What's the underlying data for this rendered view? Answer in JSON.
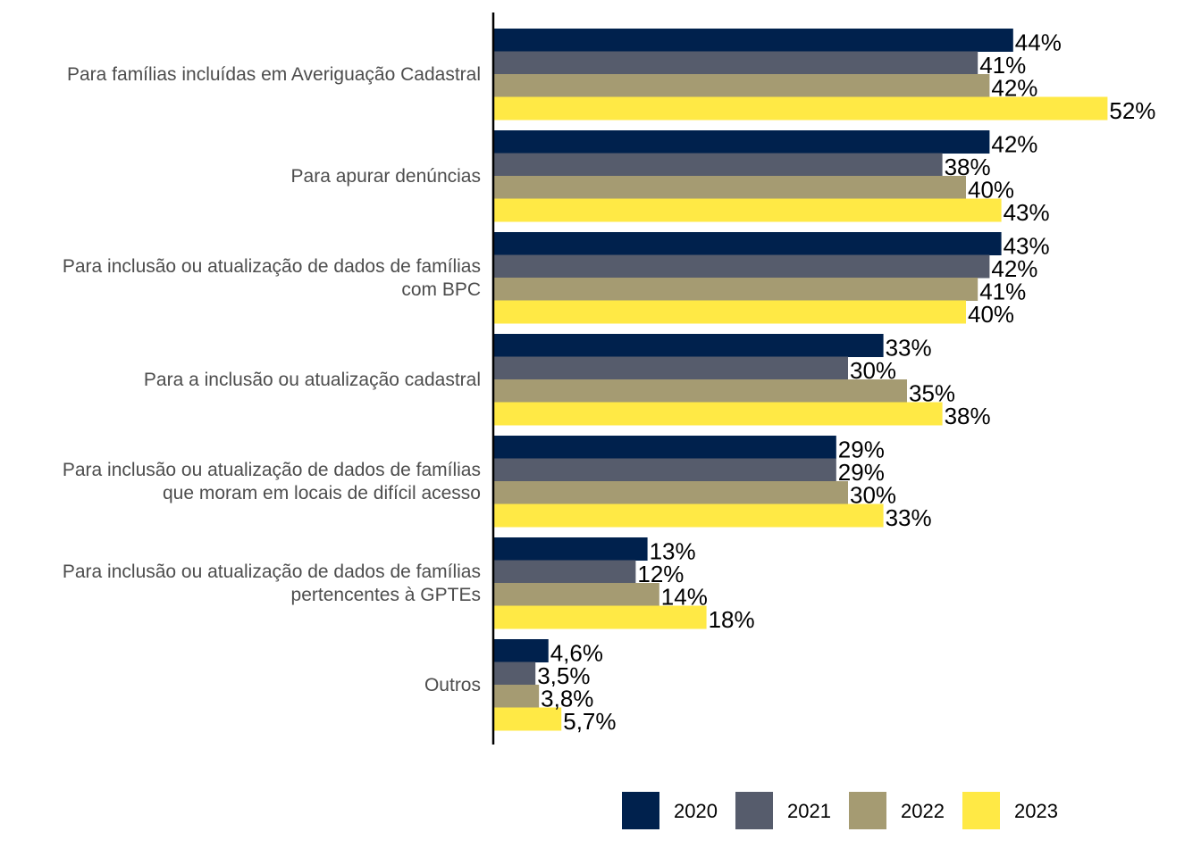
{
  "chart_data": {
    "type": "bar",
    "orientation": "horizontal",
    "title": "",
    "xlabel": "",
    "ylabel": "",
    "xlim": [
      0,
      55
    ],
    "grid": false,
    "legend_position": "bottom",
    "categories": [
      [
        "Para famílias incluídas em Averiguação Cadastral"
      ],
      [
        "Para apurar denúncias"
      ],
      [
        "Para inclusão ou atualização de dados de famílias",
        "com BPC"
      ],
      [
        "Para a inclusão ou atualização cadastral"
      ],
      [
        "Para inclusão ou atualização de dados de famílias",
        "que moram em locais de difícil acesso"
      ],
      [
        "Para inclusão ou atualização de dados de famílias",
        "pertencentes à GPTEs"
      ],
      [
        "Outros"
      ]
    ],
    "series": [
      {
        "name": "2020",
        "color": "#00214d",
        "values": [
          44,
          42,
          43,
          33,
          29,
          13,
          4.6
        ],
        "labels": [
          "44%",
          "42%",
          "43%",
          "33%",
          "29%",
          "13%",
          "4,6%"
        ]
      },
      {
        "name": "2021",
        "color": "#565c6c",
        "values": [
          41,
          38,
          42,
          30,
          29,
          12,
          3.5
        ],
        "labels": [
          "41%",
          "38%",
          "42%",
          "30%",
          "29%",
          "12%",
          "3,5%"
        ]
      },
      {
        "name": "2022",
        "color": "#a59b72",
        "values": [
          42,
          40,
          41,
          35,
          30,
          14,
          3.8
        ],
        "labels": [
          "42%",
          "40%",
          "41%",
          "35%",
          "30%",
          "14%",
          "3,8%"
        ]
      },
      {
        "name": "2023",
        "color": "#ffe945",
        "values": [
          52,
          43,
          40,
          38,
          33,
          18,
          5.7
        ],
        "labels": [
          "52%",
          "43%",
          "40%",
          "38%",
          "33%",
          "18%",
          "5,7%"
        ]
      }
    ]
  }
}
